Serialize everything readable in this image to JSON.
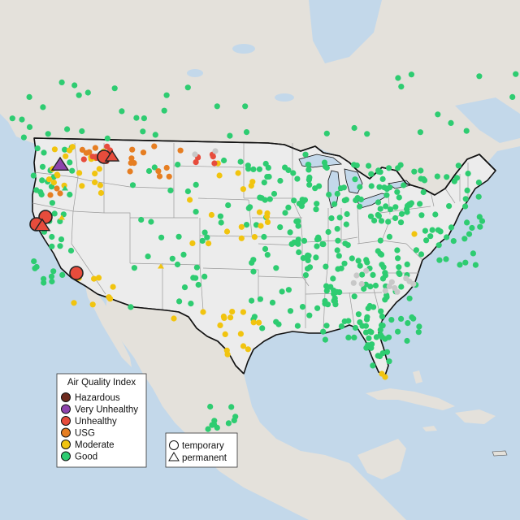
{
  "legend": {
    "title": "Air Quality Index",
    "categories": [
      {
        "label": "Hazardous",
        "color": "#6e2b1f"
      },
      {
        "label": "Very Unhealthy",
        "color": "#8e44ad"
      },
      {
        "label": "Unhealthy",
        "color": "#e74c3c"
      },
      {
        "label": "USG",
        "color": "#e67e22"
      },
      {
        "label": "Moderate",
        "color": "#f1c40f"
      },
      {
        "label": "Good",
        "color": "#2ecc71"
      }
    ]
  },
  "shape_legend": {
    "temporary": "temporary",
    "permanent": "permanent"
  },
  "colors": {
    "water": "#c3d8ea",
    "land_us": "#ececec",
    "land_other": "#e3e0da",
    "state_border": "#9a9a9a",
    "national_border": "#111111",
    "no_data": "#c8c8c8"
  }
}
